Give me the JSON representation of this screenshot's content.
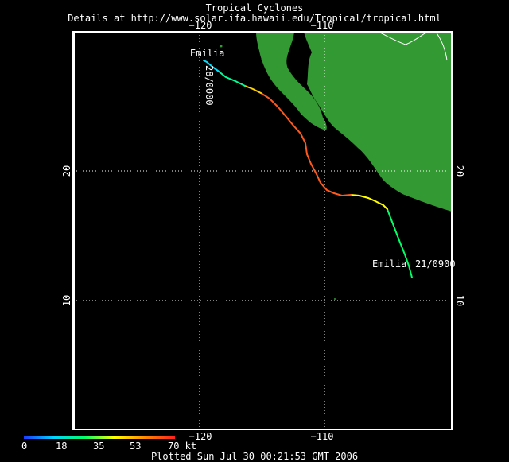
{
  "header": {
    "title": "Tropical Cyclones",
    "details": "Details at http://www.solar.ifa.hawaii.edu/Tropical/tropical.html"
  },
  "axes": {
    "lon_ticks": [
      "−120",
      "−110"
    ],
    "lat_ticks": [
      "20",
      "10"
    ]
  },
  "storm": {
    "name_start": "Emilia",
    "name_end": "Emilia",
    "start_label": "21/0900",
    "end_label": "28/0000"
  },
  "legend": {
    "ticks": [
      "0",
      "18",
      "35",
      "53",
      "70 kt"
    ],
    "colors": [
      "#1a3cff",
      "#00d5ff",
      "#00ff66",
      "#ffff00",
      "#ff8800",
      "#ff2020"
    ]
  },
  "colors": {
    "land": "#339933",
    "background": "#000000",
    "frame": "#ffffff"
  },
  "footer": {
    "plotted": "Plotted Sun Jul 30 00:21:53 GMT 2006"
  }
}
